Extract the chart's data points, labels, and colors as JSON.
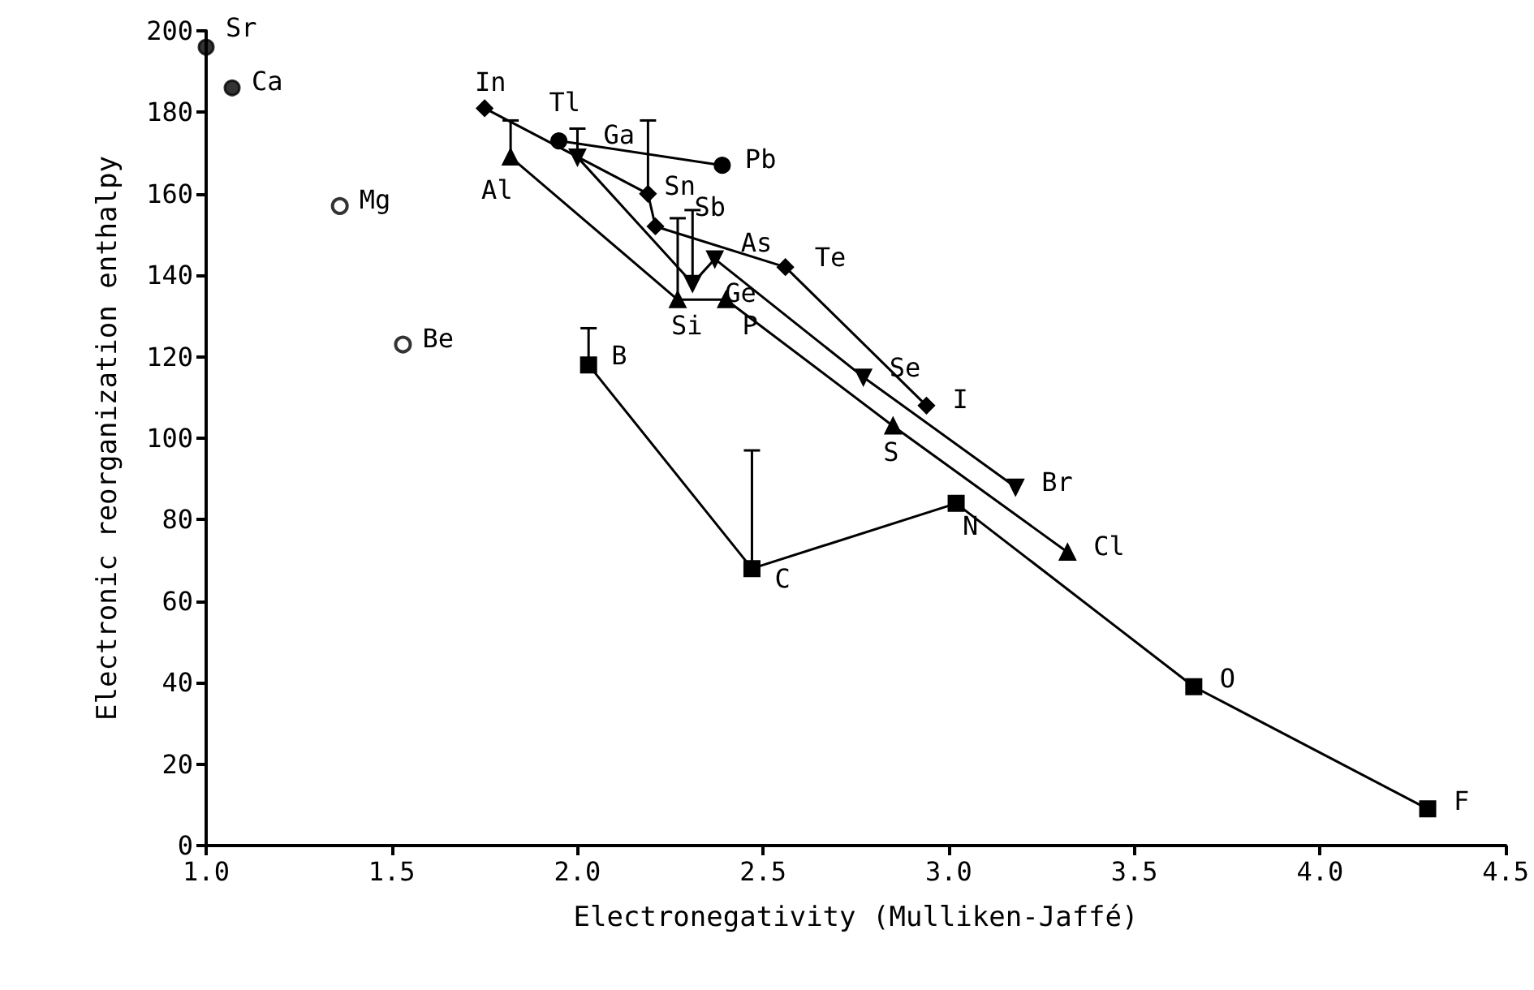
{
  "chart_data": {
    "type": "line",
    "xlabel": "Electronegativity (Mulliken-Jaffé)",
    "ylabel": "Electronic reorganization enthalpy",
    "xlim": [
      1,
      4.5
    ],
    "xticks": [
      {
        "value": 1,
        "label": "1.0"
      },
      {
        "value": 1.5,
        "label": "1.5"
      },
      {
        "value": 2,
        "label": "2.0"
      },
      {
        "value": 2.5,
        "label": "2.5"
      },
      {
        "value": 3,
        "label": "3.0"
      },
      {
        "value": 3.5,
        "label": "3.5"
      },
      {
        "value": 4,
        "label": "4.0"
      },
      {
        "value": 4.5,
        "label": "4.5"
      }
    ],
    "ylim": [
      0,
      200
    ],
    "yticks": [
      0,
      20,
      40,
      60,
      80,
      100,
      120,
      140,
      160,
      180,
      200
    ],
    "series": [
      {
        "marker": "square",
        "color": "#000000",
        "x": [
          2.03,
          2.47,
          3.02,
          3.66,
          4.29
        ],
        "values": [
          118,
          68,
          84,
          39,
          9
        ],
        "errors": [
          [
            118,
            127
          ],
          [
            68,
            97
          ],
          null,
          null,
          null
        ]
      },
      {
        "marker": "triangle",
        "color": "#000000",
        "x": [
          1.82,
          2.27,
          2.4,
          2.85,
          3.32
        ],
        "values": [
          169,
          134,
          134,
          103,
          72
        ],
        "errors": [
          [
            169,
            178
          ],
          [
            134,
            154
          ],
          null,
          null,
          null
        ]
      },
      {
        "marker": "triangle-down",
        "color": "#000000",
        "x": [
          2.0,
          2.31,
          2.37,
          2.77,
          3.18
        ],
        "values": [
          169,
          138,
          144,
          115,
          88
        ],
        "errors": [
          [
            169,
            176
          ],
          [
            138,
            156
          ],
          null,
          null,
          null
        ]
      },
      {
        "marker": "diamond",
        "color": "#000000",
        "x": [
          1.75,
          2.19,
          2.21,
          2.56,
          2.94
        ],
        "values": [
          181,
          160,
          152,
          142,
          108
        ],
        "errors": [
          null,
          [
            160,
            178
          ],
          null,
          null,
          null
        ]
      },
      {
        "marker": "circle",
        "color": "#000000",
        "x": [
          1.95,
          2.39
        ],
        "values": [
          173,
          167
        ]
      },
      {
        "type": "scatter",
        "marker": "circle",
        "color": "#000000",
        "x": [
          1.0,
          1.07
        ],
        "values": [
          196,
          186
        ]
      },
      {
        "type": "scatter",
        "marker": "open-circle",
        "color": "#000000",
        "x": [
          1.36,
          1.53
        ],
        "values": [
          157,
          123
        ]
      }
    ],
    "annotations": [
      {
        "text": "B",
        "x": 2.03,
        "y": 118
      },
      {
        "text": "C",
        "x": 2.47,
        "y": 68
      },
      {
        "text": "N",
        "x": 3.02,
        "y": 84
      },
      {
        "text": "O",
        "x": 3.66,
        "y": 39
      },
      {
        "text": "F",
        "x": 4.29,
        "y": 9
      },
      {
        "text": "Al",
        "x": 1.82,
        "y": 169
      },
      {
        "text": "Si",
        "x": 2.27,
        "y": 134
      },
      {
        "text": "P",
        "x": 2.4,
        "y": 134
      },
      {
        "text": "S",
        "x": 2.85,
        "y": 103
      },
      {
        "text": "Cl",
        "x": 3.32,
        "y": 72
      },
      {
        "text": "Ga",
        "x": 2.0,
        "y": 169
      },
      {
        "text": "Ge",
        "x": 2.31,
        "y": 138
      },
      {
        "text": "As",
        "x": 2.37,
        "y": 144
      },
      {
        "text": "Se",
        "x": 2.77,
        "y": 115
      },
      {
        "text": "Br",
        "x": 3.18,
        "y": 88
      },
      {
        "text": "In",
        "x": 1.75,
        "y": 181
      },
      {
        "text": "Sn",
        "x": 2.19,
        "y": 160
      },
      {
        "text": "Sb",
        "x": 2.21,
        "y": 152
      },
      {
        "text": "Te",
        "x": 2.56,
        "y": 142
      },
      {
        "text": "I",
        "x": 2.94,
        "y": 108
      },
      {
        "text": "Tl",
        "x": 1.95,
        "y": 173
      },
      {
        "text": "Pb",
        "x": 2.39,
        "y": 167
      },
      {
        "text": "Sr",
        "x": 1.0,
        "y": 196
      },
      {
        "text": "Ca",
        "x": 1.07,
        "y": 186
      },
      {
        "text": "Mg",
        "x": 1.36,
        "y": 157
      },
      {
        "text": "Be",
        "x": 1.53,
        "y": 123
      }
    ]
  }
}
